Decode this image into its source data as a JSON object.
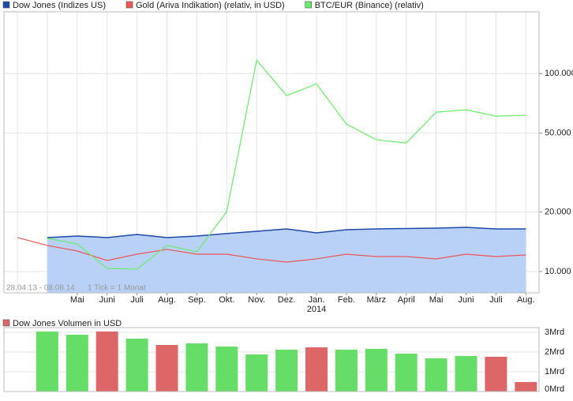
{
  "chart_data": [
    {
      "type": "line",
      "log_scale": true,
      "grid": true,
      "annotations": [
        "28.04.13 - 08.08.14",
        "1 Tick = 1 Monat"
      ],
      "year_label": "2014",
      "categories": [
        null,
        null,
        "Mai",
        "Juni",
        "Juli",
        "Aug.",
        "Sep.",
        "Okt.",
        "Nov.",
        "Dez.",
        "Jan.",
        "Feb.",
        "März",
        "April",
        "Mai",
        "Juni",
        "Juli",
        "Aug."
      ],
      "series": [
        {
          "name": "Dow Jones (Indizes US)",
          "color": "#1f4aa8",
          "fill": "#b9d0f7",
          "area": true,
          "values": [
            null,
            14840,
            15110,
            14840,
            15390,
            14840,
            15110,
            15550,
            15970,
            16410,
            15680,
            16260,
            16410,
            16490,
            16560,
            16710,
            16410,
            16410
          ]
        },
        {
          "name": "Gold (Ariva Indikation) (relativ, in USD)",
          "color": "#ee5555",
          "values": [
            14840,
            13540,
            12690,
            11370,
            12230,
            12930,
            12230,
            12230,
            11580,
            11160,
            11580,
            12230,
            11900,
            11900,
            11580,
            12230,
            11900,
            12120
          ]
        },
        {
          "name": "BTC/EUR (Binance) (relativ)",
          "color": "#66ee66",
          "values": [
            null,
            14700,
            13790,
            10370,
            10280,
            13540,
            12580,
            20080,
            116800,
            77330,
            88750,
            55590,
            46280,
            44610,
            63800,
            65560,
            60950,
            61510
          ]
        }
      ],
      "ylim": [
        7800,
        205000
      ],
      "yticks": [
        {
          "value": 10000,
          "label": "10.000"
        },
        {
          "value": 20000,
          "label": "20.000"
        },
        {
          "value": 50000,
          "label": "50.000"
        },
        {
          "value": 100000,
          "label": "100.000"
        }
      ]
    },
    {
      "type": "bar",
      "title": "Dow Jones Volumen in USD",
      "title_color": "#dd6666",
      "grid": true,
      "values": [
        3.04,
        2.88,
        3.04,
        2.68,
        2.36,
        2.44,
        2.28,
        1.88,
        2.12,
        2.24,
        2.12,
        2.16,
        1.92,
        1.68,
        1.8,
        1.76,
        0.48
      ],
      "colors": [
        "#66dd66",
        "#66dd66",
        "#dd6666",
        "#66dd66",
        "#dd6666",
        "#66dd66",
        "#66dd66",
        "#66dd66",
        "#66dd66",
        "#dd6666",
        "#66dd66",
        "#66dd66",
        "#66dd66",
        "#66dd66",
        "#66dd66",
        "#dd6666",
        "#dd6666"
      ],
      "ylim": [
        0,
        3.24
      ],
      "yticks": [
        {
          "value": 0,
          "label": "0Mrd"
        },
        {
          "value": 1,
          "label": "1Mrd"
        },
        {
          "value": 2,
          "label": "2Mrd"
        },
        {
          "value": 3,
          "label": "3Mrd"
        }
      ]
    }
  ]
}
